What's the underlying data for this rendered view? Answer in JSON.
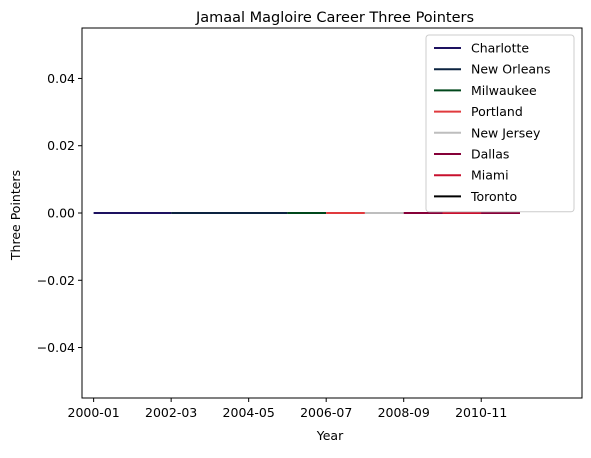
{
  "chart_data": {
    "type": "line",
    "title": "Jamaal Magloire Career Three Pointers",
    "xlabel": "Year",
    "ylabel": "Three Pointers",
    "x_ticks": [
      "2000-01",
      "2002-03",
      "2004-05",
      "2006-07",
      "2008-09",
      "2010-11"
    ],
    "y_ticks": [
      "0.04",
      "0.02",
      "0.00",
      "−0.02",
      "−0.04"
    ],
    "y_tick_values": [
      0.04,
      0.02,
      0.0,
      -0.02,
      -0.04
    ],
    "ylim": [
      -0.055,
      0.055
    ],
    "x_season_start_range": [
      1999.7,
      2012.6
    ],
    "grid": false,
    "legend_position": "upper right",
    "series": [
      {
        "name": "Charlotte",
        "color": "#1d1160",
        "x_start": 2000,
        "x_end": 2002,
        "values": [
          0,
          0,
          0
        ]
      },
      {
        "name": "New Orleans",
        "color": "#0c2340",
        "x_start": 2002,
        "x_end": 2005,
        "values": [
          0,
          0,
          0,
          0
        ]
      },
      {
        "name": "Milwaukee",
        "color": "#00471b",
        "x_start": 2005,
        "x_end": 2006,
        "values": [
          0,
          0
        ]
      },
      {
        "name": "Portland",
        "color": "#e03a3e",
        "x_start": 2006,
        "x_end": 2007,
        "values": [
          0,
          0
        ]
      },
      {
        "name": "New Jersey",
        "color": "#bebebe",
        "x_start": 2007,
        "x_end": 2008,
        "values": [
          0,
          0
        ]
      },
      {
        "name": "Dallas",
        "color": "#860038",
        "x_start": 2008,
        "x_end": 2011,
        "values": [
          0,
          0,
          0,
          0
        ]
      },
      {
        "name": "Miami",
        "color": "#c8102e",
        "x_start": 2009,
        "x_end": 2010,
        "values": [
          0,
          0
        ]
      },
      {
        "name": "Toronto",
        "color": "#000000",
        "x_start": 2011,
        "x_end": 2011,
        "values": [
          0
        ]
      }
    ]
  }
}
